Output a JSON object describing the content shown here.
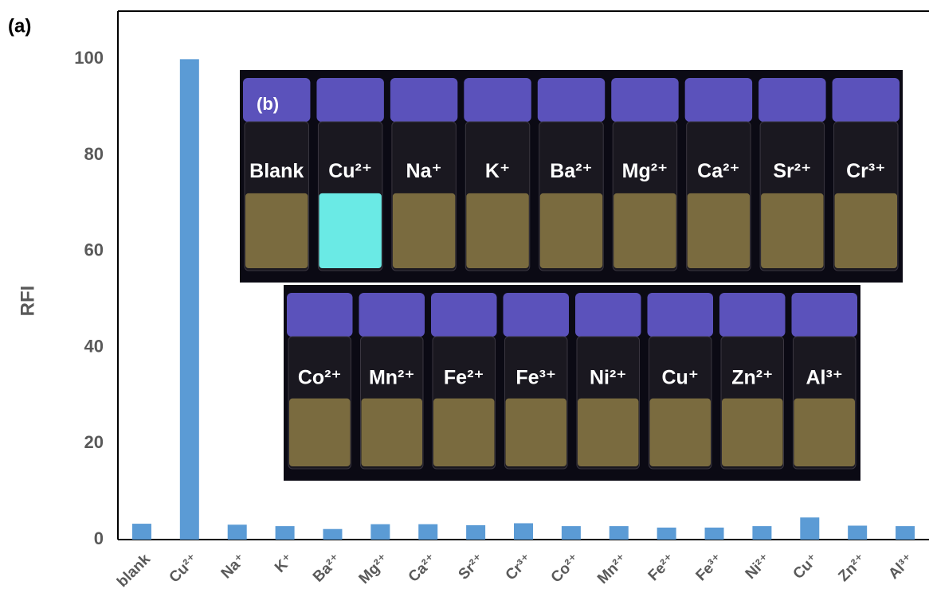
{
  "chart_data": {
    "type": "bar",
    "panel_label": "(a)",
    "y_label": "RFI",
    "categories": [
      "blank",
      "Cu²⁺",
      "Na⁺",
      "K⁺",
      "Ba²⁺",
      "Mg²⁺",
      "Ca²⁺",
      "Sr²⁺",
      "Cr³⁺",
      "Co²⁺",
      "Mn²⁺",
      "Fe²⁺",
      "Fe³⁺",
      "Ni²⁺",
      "Cu⁺",
      "Zn²⁺",
      "Al³⁺"
    ],
    "values": [
      3.3,
      100,
      3.1,
      2.8,
      2.2,
      3.2,
      3.2,
      3.0,
      3.4,
      2.8,
      2.8,
      2.5,
      2.5,
      2.8,
      4.6,
      2.9,
      2.8
    ],
    "color": "#5b9bd5",
    "ylim": [
      0,
      110
    ],
    "yticks": [
      0,
      20,
      40,
      60,
      80,
      100
    ],
    "grid": false,
    "inset": {
      "label": "(b)",
      "row1": [
        "Blank",
        "Cu²⁺",
        "Na⁺",
        "K⁺",
        "Ba²⁺",
        "Mg²⁺",
        "Ca²⁺",
        "Sr²⁺",
        "Cr³⁺"
      ],
      "row2": [
        "Co²⁺",
        "Mn²⁺",
        "Fe²⁺",
        "Fe³⁺",
        "Ni²⁺",
        "Cu⁺",
        "Zn²⁺",
        "Al³⁺"
      ]
    }
  }
}
